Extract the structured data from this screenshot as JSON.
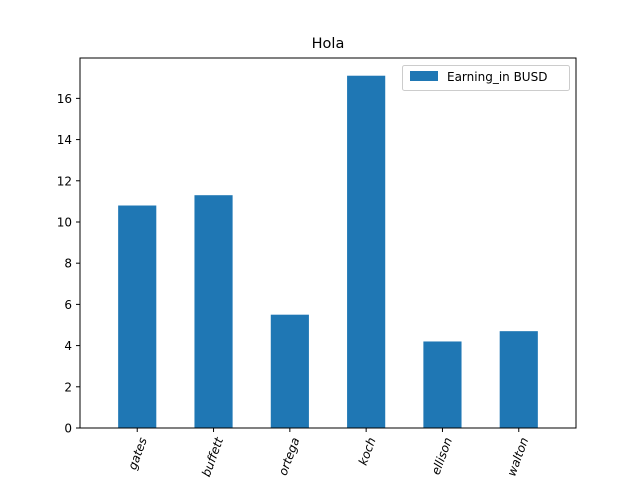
{
  "chart_data": {
    "type": "bar",
    "title": "Hola",
    "xlabel": "",
    "ylabel": "",
    "categories": [
      "gates",
      "buffett",
      "ortega",
      "koch",
      "ellison",
      "walton"
    ],
    "series": [
      {
        "name": "Earning_in BUSD",
        "values": [
          10.8,
          11.3,
          5.5,
          17.1,
          4.2,
          4.7
        ],
        "color": "#1f77b4"
      }
    ],
    "ylim": [
      0,
      17.96
    ],
    "yticks": [
      0,
      2,
      4,
      6,
      8,
      10,
      12,
      14,
      16
    ],
    "ytick_labels": [
      "0",
      "2",
      "4",
      "6",
      "8",
      "10",
      "12",
      "14",
      "16"
    ],
    "xtick_rotation_deg": 70,
    "grid": false,
    "legend_position": "top-right"
  }
}
